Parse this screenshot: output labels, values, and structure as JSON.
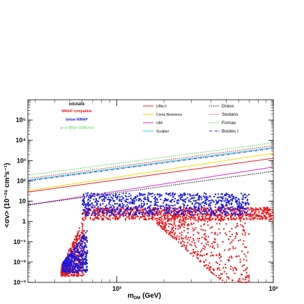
{
  "chart_data": {
    "type": "scatter",
    "xlabel_main": "m",
    "xlabel_sub": "DM",
    "xlabel_unit": "(GeV)",
    "ylabel": "<σv> (10⁻²⁶ cm³s⁻¹)",
    "x_scale": "log",
    "y_scale": "log",
    "xlim": [
      27,
      1000
    ],
    "ylim": [
      0.001,
      1000000
    ],
    "x_ticks": [
      {
        "value": 100,
        "label": "10²"
      },
      {
        "value": 1000,
        "label": "10³"
      }
    ],
    "y_ticks": [
      {
        "value": 0.001,
        "label": "10⁻³"
      },
      {
        "value": 0.01,
        "label": "10⁻²"
      },
      {
        "value": 0.1,
        "label": "10⁻¹"
      },
      {
        "value": 1,
        "label": "1"
      },
      {
        "value": 10,
        "label": "10"
      },
      {
        "value": 100,
        "label": "10²"
      },
      {
        "value": 1000,
        "label": "10³"
      },
      {
        "value": 10000,
        "label": "10⁴"
      },
      {
        "value": 100000,
        "label": "10⁵"
      }
    ],
    "info": {
      "title": "mSUGRA",
      "line1": "WMAP compatible",
      "line2": "below WMAP",
      "line3": "⟨σ v⟩ 95%ᶜᴸ 100% b b̄",
      "colors": [
        "#000000",
        "#e8181c",
        "#1a1adc",
        "#3cd23c"
      ]
    },
    "series": [
      {
        "name": "UMa II",
        "style": "solid",
        "color": "#e8181c",
        "points": [
          [
            27,
            28
          ],
          [
            1000,
            1300
          ]
        ]
      },
      {
        "name": "Coma Berenices",
        "style": "solid",
        "color": "#f5d800",
        "points": [
          [
            27,
            33
          ],
          [
            1000,
            2300
          ]
        ]
      },
      {
        "name": "UMi",
        "style": "solid",
        "color": "#d22ad2",
        "points": [
          [
            27,
            6.5
          ],
          [
            1000,
            480
          ]
        ]
      },
      {
        "name": "Sculptor",
        "style": "solid",
        "color": "#28d8d8",
        "points": [
          [
            27,
            110
          ],
          [
            1000,
            4500
          ]
        ]
      },
      {
        "name": "Draco",
        "style": "dotted",
        "color": "#000000",
        "points": [
          [
            27,
            6.5
          ],
          [
            1000,
            300
          ]
        ]
      },
      {
        "name": "Sextans",
        "style": "dotted",
        "color": "#e8181c",
        "points": [
          [
            27,
            130
          ],
          [
            1000,
            5500
          ]
        ]
      },
      {
        "name": "Fornax",
        "style": "dotted",
        "color": "#3cd23c",
        "points": [
          [
            27,
            190
          ],
          [
            1000,
            7500
          ]
        ]
      },
      {
        "name": "Bootes I",
        "style": "dashdot",
        "color": "#2222cc",
        "points": [
          [
            27,
            100
          ],
          [
            1000,
            4000
          ]
        ]
      }
    ],
    "scatter_regions": [
      {
        "label": "WMAP compatible",
        "color": "#e8181c",
        "shape": "low-mass-branch",
        "x": [
          44,
          62
        ],
        "y": [
          0.002,
          1.5
        ]
      },
      {
        "label": "WMAP compatible",
        "color": "#e8181c",
        "shape": "band",
        "x": [
          60,
          1000
        ],
        "y": [
          1.2,
          5
        ]
      },
      {
        "label": "WMAP compatible",
        "color": "#e8181c",
        "shape": "funnel",
        "x": [
          180,
          700
        ],
        "y": [
          0.001,
          1.5
        ]
      },
      {
        "label": "below WMAP",
        "color": "#1a1adc",
        "shape": "band",
        "x": [
          60,
          700
        ],
        "y": [
          2,
          25
        ]
      },
      {
        "label": "below WMAP",
        "color": "#1a1adc",
        "shape": "low-mass-branch",
        "x": [
          45,
          65
        ],
        "y": [
          0.003,
          0.4
        ]
      }
    ]
  }
}
